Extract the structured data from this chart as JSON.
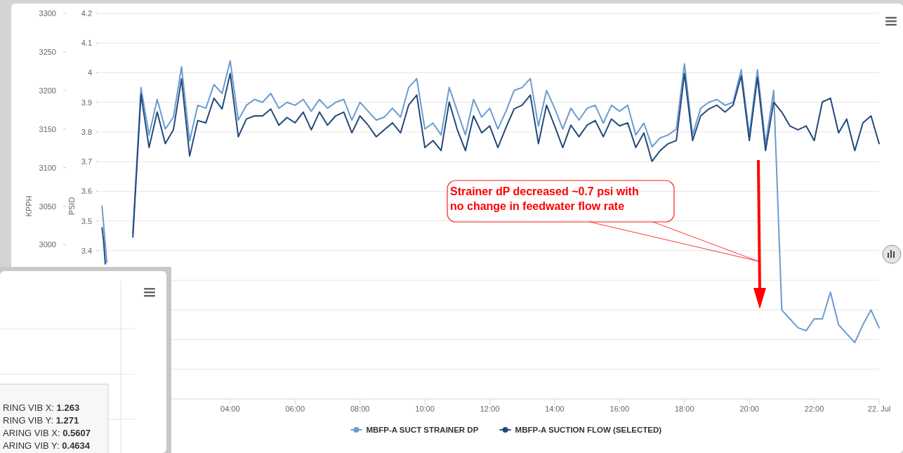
{
  "chart_data": [
    {
      "type": "line",
      "xlabel": null,
      "ylabel": "PSID",
      "y2label": "KPPH",
      "x": [
        1,
        1.25,
        1.5,
        1.75,
        2,
        2.25,
        2.5,
        2.75,
        3,
        3.25,
        3.5,
        3.75,
        4,
        4.25,
        4.5,
        4.75,
        5,
        5.25,
        5.5,
        5.75,
        6,
        6.25,
        6.5,
        6.75,
        7,
        7.25,
        7.5,
        7.75,
        8,
        8.25,
        8.5,
        8.75,
        9,
        9.25,
        9.5,
        9.75,
        10,
        10.25,
        10.5,
        10.75,
        11,
        11.25,
        11.5,
        11.75,
        12,
        12.25,
        12.5,
        12.75,
        13,
        13.25,
        13.5,
        13.75,
        14,
        14.25,
        14.5,
        14.75,
        15,
        15.25,
        15.5,
        15.75,
        16,
        16.25,
        16.5,
        16.75,
        17,
        17.25,
        17.5,
        17.75,
        18,
        18.25,
        18.5,
        18.75,
        19,
        19.25,
        19.5,
        19.75,
        20,
        20.25,
        20.5,
        20.75,
        21,
        21.25,
        21.5,
        21.75,
        22,
        22.25,
        22.5,
        22.75,
        23,
        23.25,
        23.5,
        23.75,
        24
      ],
      "xlim": [
        0,
        24
      ],
      "xticks": [
        {
          "value": 4,
          "label": "04:00"
        },
        {
          "value": 6,
          "label": "06:00"
        },
        {
          "value": 8,
          "label": "08:00"
        },
        {
          "value": 10,
          "label": "10:00"
        },
        {
          "value": 12,
          "label": "12:00"
        },
        {
          "value": 14,
          "label": "14:00"
        },
        {
          "value": 16,
          "label": "16:00"
        },
        {
          "value": 18,
          "label": "18:00"
        },
        {
          "value": 20,
          "label": "20:00"
        },
        {
          "value": 22,
          "label": "22:00"
        },
        {
          "value": 24,
          "label": "22. Jul"
        }
      ],
      "ylim": [
        2.9,
        4.2
      ],
      "yticks": [
        {
          "value": 3.0,
          "label": null
        },
        {
          "value": 3.1,
          "label": null
        },
        {
          "value": 3.2,
          "label": null
        },
        {
          "value": 3.3,
          "label": null
        },
        3.4,
        3.5,
        3.6,
        3.7,
        3.8,
        3.9,
        4,
        4.1,
        4.2
      ],
      "y2lim": [
        2800,
        3300
      ],
      "y2ticks": [
        3000,
        3050,
        3100,
        3150,
        3200,
        3250,
        3300
      ],
      "grid": "y",
      "legend": "bottom",
      "series": [
        {
          "color": "#6b9bd1",
          "x": [
            0.05,
            0.12,
            0.2
          ],
          "values": [
            3.55,
            3.46,
            3.36
          ]
        },
        {
          "color": "#23497b",
          "axis": "y2",
          "x": [
            0.05,
            0.1,
            0.15
          ],
          "values": [
            3022,
            3004,
            2975
          ]
        },
        {
          "name": "MBFP-A SUCT STRAINER DP",
          "color": "#6b9bd1",
          "values": [
            3.46,
            3.95,
            3.79,
            3.91,
            3.81,
            3.85,
            4.02,
            3.77,
            3.89,
            3.88,
            3.96,
            3.93,
            4.04,
            3.84,
            3.89,
            3.91,
            3.9,
            3.93,
            3.88,
            3.9,
            3.89,
            3.91,
            3.87,
            3.91,
            3.88,
            3.9,
            3.91,
            3.84,
            3.9,
            3.87,
            3.84,
            3.85,
            3.88,
            3.85,
            3.95,
            3.98,
            3.81,
            3.83,
            3.79,
            3.95,
            3.87,
            3.79,
            3.91,
            3.85,
            3.88,
            3.81,
            3.87,
            3.94,
            3.95,
            3.98,
            3.82,
            3.94,
            3.88,
            3.81,
            3.88,
            3.84,
            3.88,
            3.89,
            3.83,
            3.89,
            3.87,
            3.89,
            3.79,
            3.83,
            3.75,
            3.78,
            3.79,
            3.81,
            4.03,
            3.79,
            3.88,
            3.9,
            3.91,
            3.89,
            3.9,
            4.01,
            3.79,
            4.01,
            3.76,
            3.94,
            3.2,
            3.17,
            3.14,
            3.13,
            3.17,
            3.17,
            3.26,
            3.15,
            3.12,
            3.09,
            3.15,
            3.2,
            3.14
          ]
        },
        {
          "name": "MBFP-A SUCTION FLOW (SELECTED)",
          "color": "#23497b",
          "axis": "y2",
          "values": [
            3010,
            3195,
            3126,
            3172,
            3131,
            3149,
            3215,
            3115,
            3161,
            3158,
            3190,
            3176,
            3222,
            3140,
            3163,
            3167,
            3167,
            3176,
            3155,
            3165,
            3158,
            3172,
            3149,
            3172,
            3155,
            3167,
            3172,
            3145,
            3167,
            3155,
            3140,
            3149,
            3158,
            3145,
            3181,
            3194,
            3126,
            3135,
            3122,
            3185,
            3149,
            3122,
            3167,
            3145,
            3154,
            3126,
            3152,
            3176,
            3181,
            3194,
            3131,
            3181,
            3154,
            3126,
            3155,
            3140,
            3155,
            3161,
            3140,
            3163,
            3154,
            3158,
            3126,
            3145,
            3108,
            3122,
            3131,
            3135,
            3222,
            3135,
            3167,
            3176,
            3181,
            3172,
            3181,
            3219,
            3135,
            3217,
            3122,
            3185,
            3172,
            3154,
            3149,
            3154,
            3135,
            3185,
            3190,
            3145,
            3163,
            3122,
            3158,
            3167,
            3131
          ]
        }
      ],
      "annotations": [
        "Strainer dP decreased ~0.7 psi with no change in feedwater flow rate"
      ]
    },
    {
      "type": "other",
      "annotations": [
        "RING VIB X: 1.263",
        "RING VIB Y: 1.271",
        "ARING VIB X: 0.5607",
        "ARING VIB Y: 0.4634"
      ]
    }
  ]
}
